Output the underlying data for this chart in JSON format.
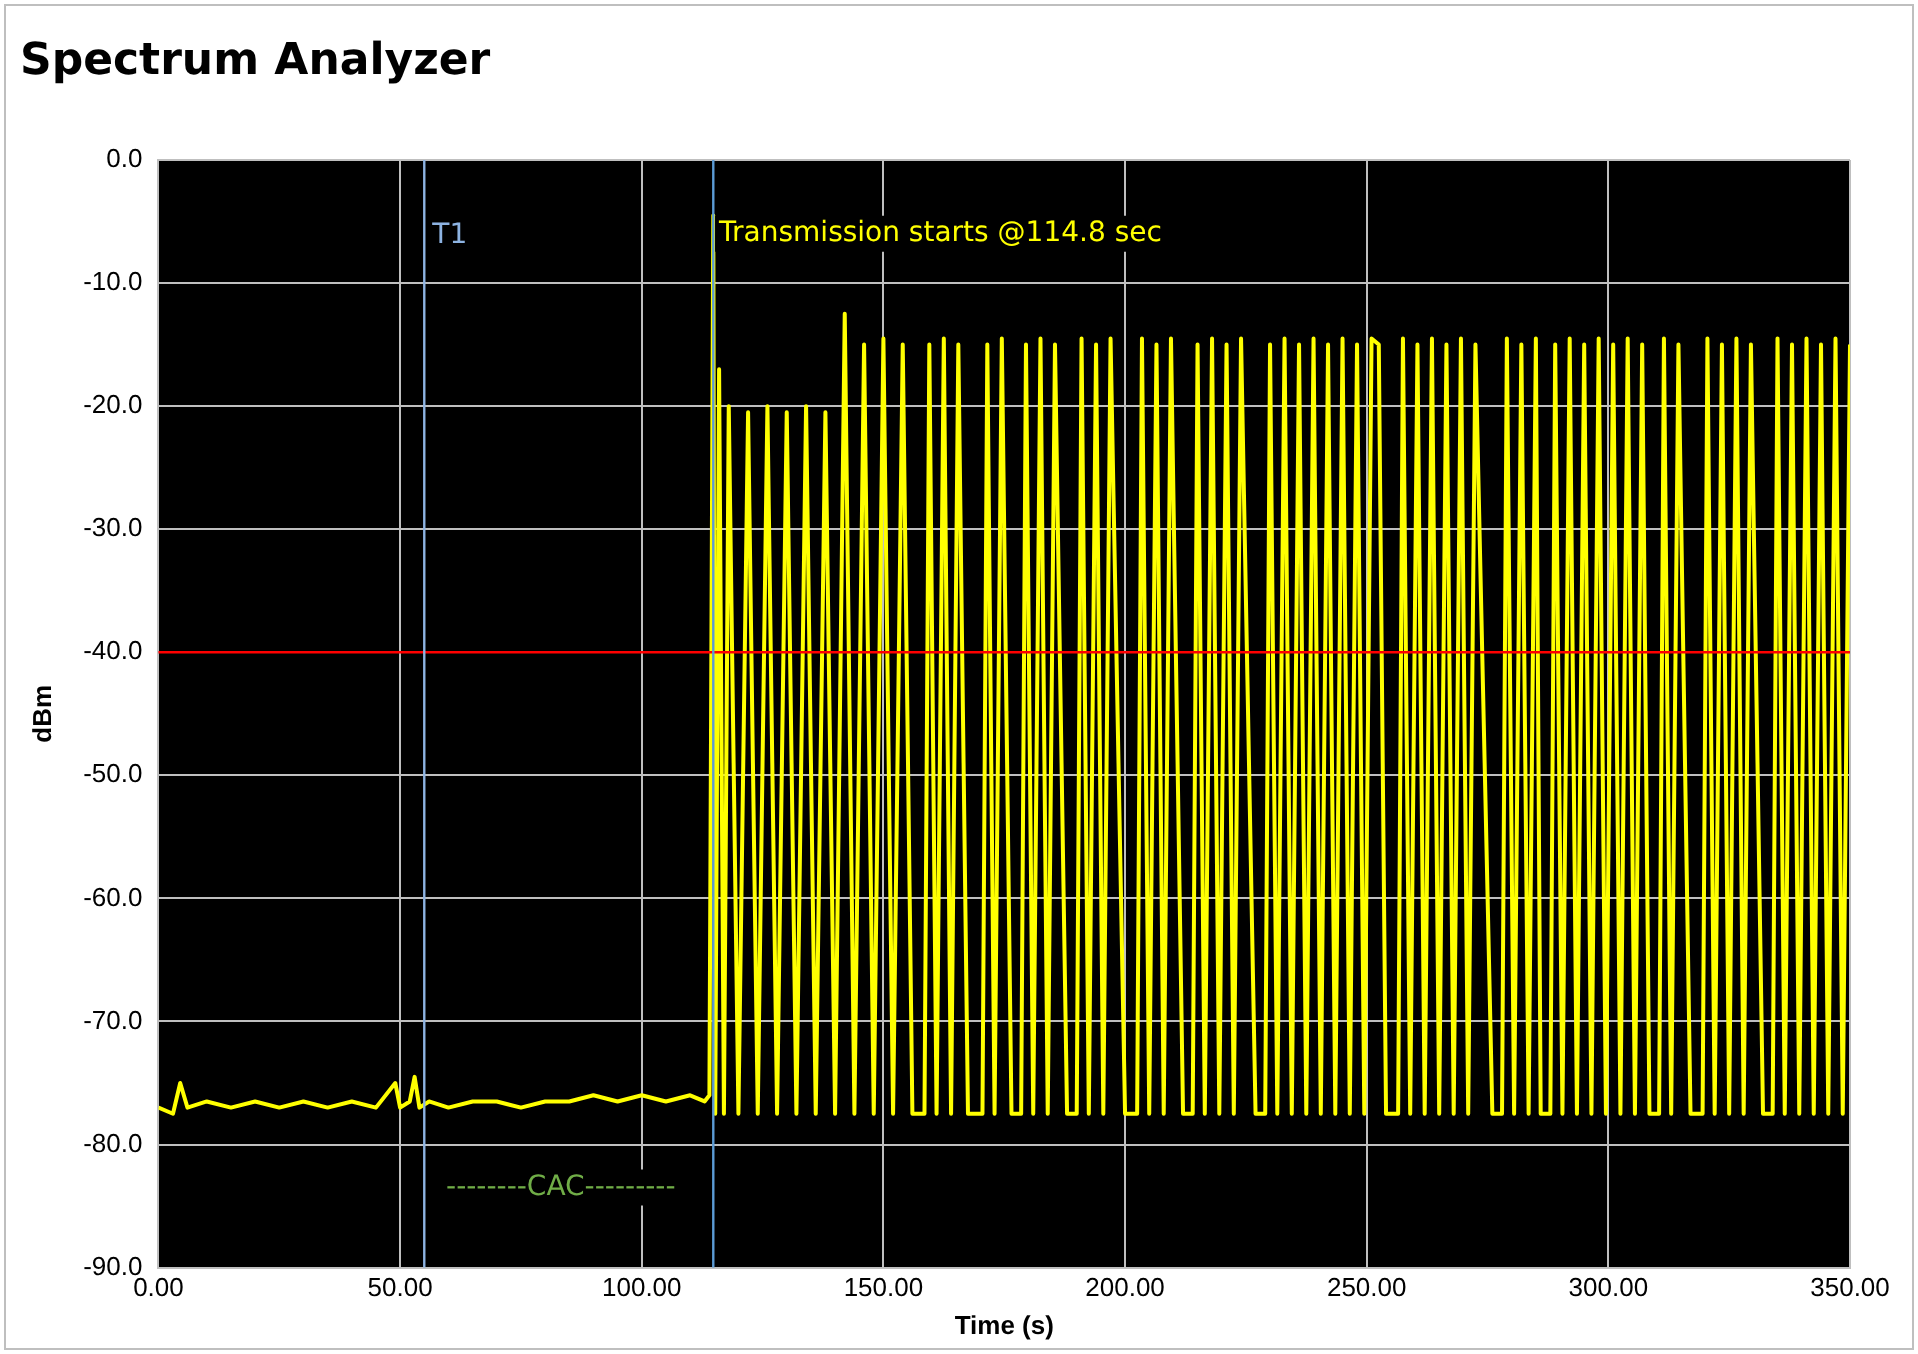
{
  "chart_data": {
    "type": "line",
    "title": "Spectrum Analyzer",
    "xlabel": "Time (s)",
    "ylabel": "dBm",
    "xlim": [
      0,
      350
    ],
    "xticks": [
      {
        "value": 0,
        "label": "0.00"
      },
      {
        "value": 50,
        "label": "50.00"
      },
      {
        "value": 100,
        "label": "100.00"
      },
      {
        "value": 150,
        "label": "150.00"
      },
      {
        "value": 200,
        "label": "200.00"
      },
      {
        "value": 250,
        "label": "250.00"
      },
      {
        "value": 300,
        "label": "300.00"
      },
      {
        "value": 350,
        "label": "350.00"
      }
    ],
    "ylim": [
      -90,
      0
    ],
    "yticks": [
      {
        "value": -90,
        "label": "-90.0"
      },
      {
        "value": -80,
        "label": "-80.0"
      },
      {
        "value": -70,
        "label": "-70.0"
      },
      {
        "value": -60,
        "label": "-60.0"
      },
      {
        "value": -50,
        "label": "-50.0"
      },
      {
        "value": -40,
        "label": "-40.0"
      },
      {
        "value": -30,
        "label": "-30.0"
      },
      {
        "value": -20,
        "label": "-20.0"
      },
      {
        "value": -10,
        "label": "-10.0"
      },
      {
        "value": 0,
        "label": "0.0"
      }
    ],
    "grid": true,
    "legend": false,
    "marker": "none",
    "line_style": "solid",
    "series": [
      {
        "color": "#ffff00",
        "x": [
          0,
          3,
          4.5,
          6,
          10,
          15,
          20,
          25,
          30,
          35,
          40,
          45,
          49,
          50,
          52,
          53,
          54,
          56,
          60,
          65,
          70,
          75,
          80,
          85,
          90,
          95,
          100,
          105,
          110,
          113,
          114,
          114.8,
          115.2,
          116,
          117,
          118,
          120,
          122,
          124,
          126,
          128,
          130,
          132,
          134,
          136,
          138,
          140,
          142,
          144,
          146,
          148,
          150,
          152,
          154,
          156,
          158.5,
          159.5,
          161,
          162.5,
          164,
          165.5,
          167.5,
          170.5,
          171.5,
          173,
          174.5,
          176.5,
          178.5,
          179.5,
          181,
          182.5,
          184,
          185.5,
          188,
          190,
          191,
          192.5,
          194,
          195.5,
          197,
          200,
          202.5,
          203.5,
          205,
          206.5,
          208,
          209.5,
          212,
          214,
          215,
          216.5,
          218,
          219.5,
          221,
          222.5,
          224,
          227,
          229,
          230,
          231.5,
          233,
          234.5,
          236,
          237.5,
          239,
          240.5,
          242,
          243.5,
          245,
          246.5,
          248,
          249.5,
          251,
          252.5,
          254,
          256.5,
          257.5,
          259,
          260.5,
          262,
          263.5,
          265,
          266.5,
          268,
          269.5,
          271,
          272.5,
          276,
          278,
          279,
          280.5,
          282,
          283.5,
          285,
          286,
          288,
          289,
          290.5,
          292,
          293.5,
          295,
          296.5,
          298,
          299.5,
          301,
          302.5,
          304,
          305.5,
          307,
          308.5,
          310.5,
          311.5,
          313,
          314.5,
          317,
          319.5,
          320.5,
          322,
          323.5,
          325,
          326.5,
          328,
          329.5,
          332,
          334,
          335,
          336.5,
          338,
          339.5,
          341,
          342.5,
          344,
          345.5,
          347,
          348.5,
          350
        ],
        "values": [
          -77,
          -77.5,
          -75,
          -77,
          -76.5,
          -77,
          -76.5,
          -77,
          -76.5,
          -77,
          -76.5,
          -77,
          -75,
          -77,
          -76.5,
          -74.5,
          -77,
          -76.5,
          -77,
          -76.5,
          -76.5,
          -77,
          -76.5,
          -76.5,
          -76,
          -76.5,
          -76,
          -76.5,
          -76,
          -76.5,
          -76,
          -4.5,
          -77.5,
          -17,
          -77.5,
          -20,
          -77.5,
          -20.5,
          -77.5,
          -20,
          -77.5,
          -20.5,
          -77.5,
          -20,
          -77.5,
          -20.5,
          -77.5,
          -12.5,
          -77.5,
          -15,
          -77.5,
          -14.5,
          -77.5,
          -15,
          -77.5,
          -77.5,
          -15,
          -77.5,
          -14.5,
          -77.5,
          -15,
          -77.5,
          -77.5,
          -15,
          -77.5,
          -14.5,
          -77.5,
          -77.5,
          -15,
          -77.5,
          -14.5,
          -77.5,
          -15,
          -77.5,
          -77.5,
          -14.5,
          -77.5,
          -15,
          -77.5,
          -14.5,
          -77.5,
          -77.5,
          -14.5,
          -77.5,
          -15,
          -77.5,
          -14.5,
          -77.5,
          -77.5,
          -15,
          -77.5,
          -14.5,
          -77.5,
          -15,
          -77.5,
          -14.5,
          -77.5,
          -77.5,
          -15,
          -77.5,
          -14.5,
          -77.5,
          -15,
          -77.5,
          -14.5,
          -77.5,
          -15,
          -77.5,
          -14.5,
          -77.5,
          -15,
          -77.5,
          -14.5,
          -15,
          -77.5,
          -77.5,
          -14.5,
          -77.5,
          -15,
          -77.5,
          -14.5,
          -77.5,
          -15,
          -77.5,
          -14.5,
          -77.5,
          -15,
          -77.5,
          -77.5,
          -14.5,
          -77.5,
          -15,
          -77.5,
          -14.5,
          -77.5,
          -77.5,
          -15,
          -77.5,
          -14.5,
          -77.5,
          -15,
          -77.5,
          -14.5,
          -77.5,
          -15,
          -77.5,
          -14.5,
          -77.5,
          -15,
          -77.5,
          -77.5,
          -14.5,
          -77.5,
          -15,
          -77.5,
          -77.5,
          -14.5,
          -77.5,
          -15,
          -77.5,
          -14.5,
          -77.5,
          -15,
          -77.5,
          -77.5,
          -14.5,
          -77.5,
          -15,
          -77.5,
          -14.5,
          -77.5,
          -15,
          -77.5,
          -14.5,
          -77.5,
          -15
        ]
      }
    ],
    "ref_lines": [
      {
        "axis": "y",
        "value": -40,
        "color": "#ff0000"
      },
      {
        "axis": "x",
        "value": 55,
        "label": "T1",
        "color": "#8db3e2"
      },
      {
        "axis": "x",
        "value": 114.8,
        "color": "#5b9bd5"
      }
    ],
    "annotations": [
      {
        "text": "Transmission starts @114.8 sec",
        "x": 116,
        "y": -6
      },
      "--------CAC---------"
    ]
  }
}
